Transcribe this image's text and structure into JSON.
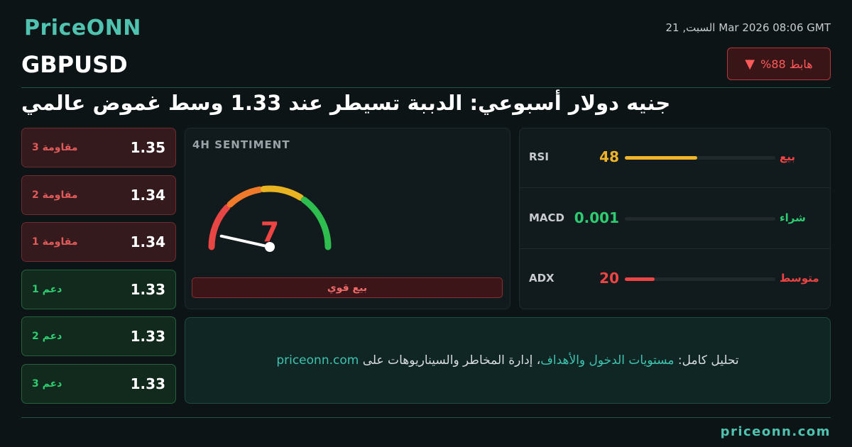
{
  "header": {
    "brand": "PriceONN",
    "timestamp": "السبت, 21 Mar 2026 08:06 GMT",
    "symbol": "GBPUSD",
    "change_badge": "هابط 88%"
  },
  "headline": "جنيه دولار أسبوعي: الدببة تسيطر عند 1.33 وسط غموض عالمي",
  "levels": [
    {
      "label": "مقاومة 3",
      "value": 1.35,
      "color": "#e05a5a"
    },
    {
      "label": "مقاومة 2",
      "value": 1.34,
      "color": "#e05a5a"
    },
    {
      "label": "مقاومة 1",
      "value": 1.34,
      "color": "#e05a5a"
    },
    {
      "label": "دعم 1",
      "value": 1.33,
      "color": "#2ecc71"
    },
    {
      "label": "دعم 2",
      "value": 1.33,
      "color": "#2ecc71"
    },
    {
      "label": "دعم 3",
      "value": 1.33,
      "color": "#2ecc71"
    }
  ],
  "sentiment": {
    "title": "4H SENTIMENT",
    "value": 7,
    "scale": [
      0,
      100
    ],
    "label": "بيع قوي",
    "color": "#ef4444"
  },
  "indicators": [
    {
      "name": "RSI",
      "value": 48,
      "signal": "بيع",
      "color": "#f0b429",
      "signal_color": "#ef4444"
    },
    {
      "name": "MACD",
      "value": 0.001,
      "signal": "شراء",
      "color": "#2ecc71",
      "signal_color": "#2ecc71"
    },
    {
      "name": "ADX",
      "value": 20,
      "signal": "متوسط",
      "color": "#ef4444",
      "signal_color": "#ef4444"
    }
  ],
  "indicator_scale": [
    0,
    100
  ],
  "cta": {
    "parts": [
      {
        "text": "تحليل كامل: ",
        "color": "#d8dcde"
      },
      {
        "text": "مستويات الدخول والأهداف",
        "color": "#3fc3b0"
      },
      {
        "text": "، إدارة المخاطر والسيناريوهات على ",
        "color": "#d8dcde"
      },
      {
        "text": "priceonn.com",
        "color": "#3fc3b0"
      }
    ]
  },
  "footer": "priceonn.com"
}
